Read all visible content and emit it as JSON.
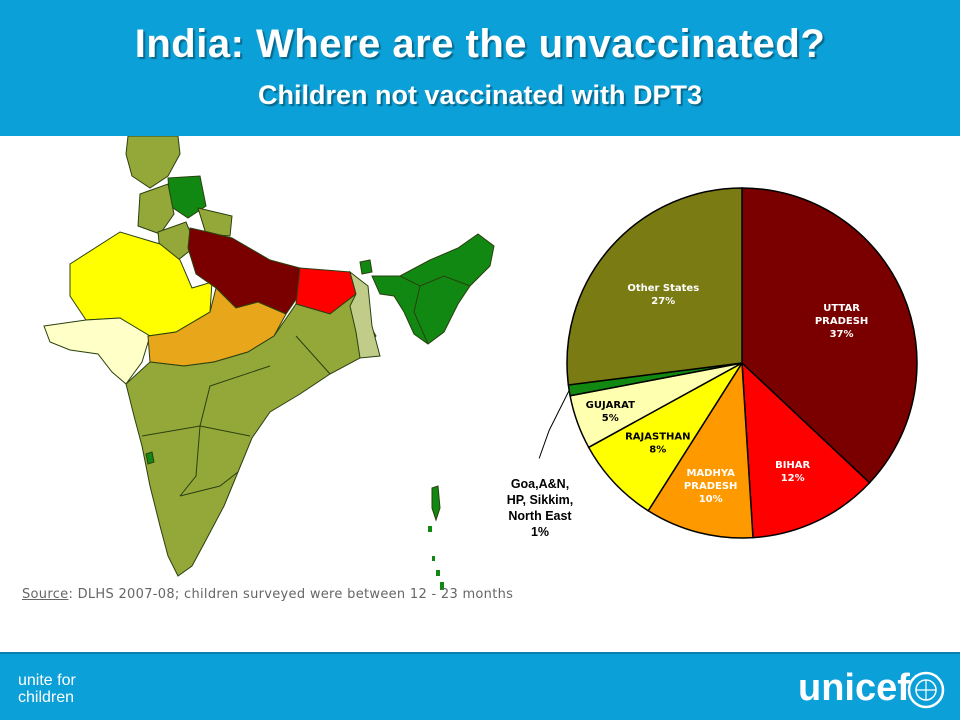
{
  "header": {
    "title": "India: Where are the unvaccinated?",
    "subtitle": "Children not vaccinated with DPT3"
  },
  "source": {
    "label": "Source",
    "text": ": DLHS 2007-08; children surveyed were between 12 - 23 months"
  },
  "footer": {
    "tagline_line1": "unite for",
    "tagline_line2": "children",
    "brand": "unicef"
  },
  "colors": {
    "header_bg": "#0ba0d8",
    "uttar_pradesh": "#7a0000",
    "bihar": "#ff0000",
    "madhya_pradesh": "#ff9900",
    "rajasthan": "#ffff00",
    "gujarat": "#ffffb0",
    "small_states": "#118811",
    "other_states": "#7b7b14",
    "map_other": "#94a83a"
  },
  "chart_data": {
    "type": "pie",
    "title": "",
    "slices": [
      {
        "label_lines": [
          "UTTAR",
          "PRADESH",
          "37%"
        ],
        "name": "UTTAR PRADESH",
        "value": 37,
        "color": "#7a0000",
        "text_color": "#ffffff"
      },
      {
        "label_lines": [
          "BIHAR",
          "12%"
        ],
        "name": "BIHAR",
        "value": 12,
        "color": "#ff0000",
        "text_color": "#ffffff"
      },
      {
        "label_lines": [
          "MADHYA",
          "PRADESH",
          "10%"
        ],
        "name": "MADHYA PRADESH",
        "value": 10,
        "color": "#ff9900",
        "text_color": "#ffffff"
      },
      {
        "label_lines": [
          "RAJASTHAN",
          "8%"
        ],
        "name": "RAJASTHAN",
        "value": 8,
        "color": "#ffff00",
        "text_color": "#000000"
      },
      {
        "label_lines": [
          "GUJARAT",
          "5%"
        ],
        "name": "GUJARAT",
        "value": 5,
        "color": "#ffffb0",
        "text_color": "#000000"
      },
      {
        "label_lines": [],
        "name": "Goa,A&N, HP, Sikkim, North East",
        "value": 1,
        "color": "#118811",
        "text_color": "#000000"
      },
      {
        "label_lines": [
          "Other States",
          "27%"
        ],
        "name": "Other States",
        "value": 27,
        "color": "#7b7b14",
        "text_color": "#ffffff"
      }
    ],
    "callout_lines": [
      "Goa,A&N,",
      "HP, Sikkim,",
      "North East",
      "1%"
    ]
  }
}
